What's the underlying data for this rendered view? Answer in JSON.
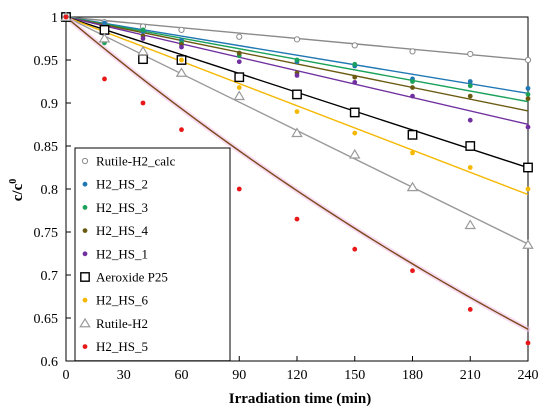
{
  "chart_data": {
    "type": "scatter",
    "xlabel": "Irradiation time (min)",
    "ylabel_main": "c/c",
    "ylabel_sup": "0",
    "xlim": [
      0,
      240
    ],
    "ylim": [
      0.6,
      1.0
    ],
    "xticks": [
      0,
      30,
      60,
      90,
      120,
      150,
      180,
      210,
      240
    ],
    "yticks": [
      0.6,
      0.65,
      0.7,
      0.75,
      0.8,
      0.85,
      0.9,
      0.95,
      1.0
    ],
    "ytick_labels": [
      "0.6",
      "0.65",
      "0.7",
      "0.75",
      "0.8",
      "0.85",
      "0.9",
      "0.95",
      "1"
    ],
    "legend_position": "left",
    "grid": false,
    "series": [
      {
        "name": "Rutile-H2_calc",
        "marker": "circle-open",
        "color": "#8a8a8a",
        "size": 2.6,
        "x": [
          0,
          20,
          40,
          60,
          90,
          120,
          150,
          180,
          210,
          240
        ],
        "y": [
          1.0,
          0.994,
          0.989,
          0.985,
          0.977,
          0.974,
          0.967,
          0.96,
          0.957,
          0.95
        ],
        "fit": {
          "type": "linear",
          "k": 0.000208
        }
      },
      {
        "name": "H2_HS_2",
        "marker": "circle",
        "color": "#1f77b4",
        "size": 2.4,
        "x": [
          0,
          20,
          40,
          60,
          90,
          120,
          150,
          180,
          210,
          240
        ],
        "y": [
          1.0,
          0.993,
          0.983,
          0.973,
          0.958,
          0.948,
          0.943,
          0.928,
          0.925,
          0.917
        ],
        "fit": {
          "type": "linear",
          "k": 0.00037
        }
      },
      {
        "name": "H2_HS_3",
        "marker": "circle",
        "color": "#1aa15a",
        "size": 2.4,
        "x": [
          0,
          20,
          40,
          60,
          90,
          120,
          150,
          180,
          210,
          240
        ],
        "y": [
          1.0,
          0.97,
          0.985,
          0.97,
          0.955,
          0.95,
          0.945,
          0.925,
          0.92,
          0.91
        ],
        "fit": {
          "type": "linear",
          "k": 0.00041
        }
      },
      {
        "name": "H2_HS_4",
        "marker": "circle",
        "color": "#6b5b12",
        "size": 2.4,
        "x": [
          0,
          20,
          40,
          60,
          90,
          120,
          150,
          180,
          210,
          240
        ],
        "y": [
          1.0,
          0.985,
          0.978,
          0.968,
          0.958,
          0.935,
          0.93,
          0.918,
          0.908,
          0.905
        ],
        "fit": {
          "type": "linear",
          "k": 0.000455
        }
      },
      {
        "name": "H2_HS_1",
        "marker": "circle",
        "color": "#7030a0",
        "size": 2.4,
        "x": [
          0,
          20,
          40,
          60,
          90,
          120,
          150,
          180,
          210,
          240
        ],
        "y": [
          1.0,
          0.985,
          0.975,
          0.965,
          0.948,
          0.932,
          0.924,
          0.908,
          0.88,
          0.872
        ],
        "fit": {
          "type": "linear",
          "k": 0.00052
        }
      },
      {
        "name": "Aeroxide P25",
        "marker": "square-open",
        "color": "#000000",
        "size": 4.2,
        "x": [
          0,
          20,
          40,
          60,
          90,
          120,
          150,
          180,
          210,
          240
        ],
        "y": [
          1.0,
          0.985,
          0.951,
          0.95,
          0.93,
          0.91,
          0.889,
          0.863,
          0.85,
          0.825
        ],
        "fit": {
          "type": "linear",
          "k": 0.00073
        }
      },
      {
        "name": "H2_HS_6",
        "marker": "circle",
        "color": "#f5b800",
        "size": 2.4,
        "x": [
          0,
          20,
          40,
          60,
          90,
          120,
          150,
          180,
          210,
          240
        ],
        "y": [
          1.0,
          0.975,
          0.96,
          0.95,
          0.918,
          0.89,
          0.865,
          0.842,
          0.825,
          0.8
        ],
        "fit": {
          "type": "linear",
          "k": 0.00086
        }
      },
      {
        "name": "Rutile-H2",
        "marker": "triangle-open",
        "color": "#9a9a9a",
        "size": 4.5,
        "x": [
          0,
          20,
          40,
          60,
          90,
          120,
          150,
          180,
          210,
          240
        ],
        "y": [
          1.0,
          0.975,
          0.96,
          0.935,
          0.908,
          0.865,
          0.84,
          0.802,
          0.758,
          0.735
        ],
        "fit": {
          "type": "linear",
          "k": 0.0011
        }
      },
      {
        "name": "H2_HS_5",
        "marker": "circle",
        "color": "#e81818",
        "size": 2.4,
        "fit_color": "#7a4a1a",
        "x": [
          0,
          20,
          40,
          60,
          90,
          120,
          150,
          180,
          210,
          240
        ],
        "y": [
          1.0,
          0.928,
          0.9,
          0.869,
          0.8,
          0.765,
          0.73,
          0.705,
          0.66,
          0.621
        ],
        "fit": {
          "type": "exp",
          "k": 0.00188
        }
      }
    ]
  }
}
